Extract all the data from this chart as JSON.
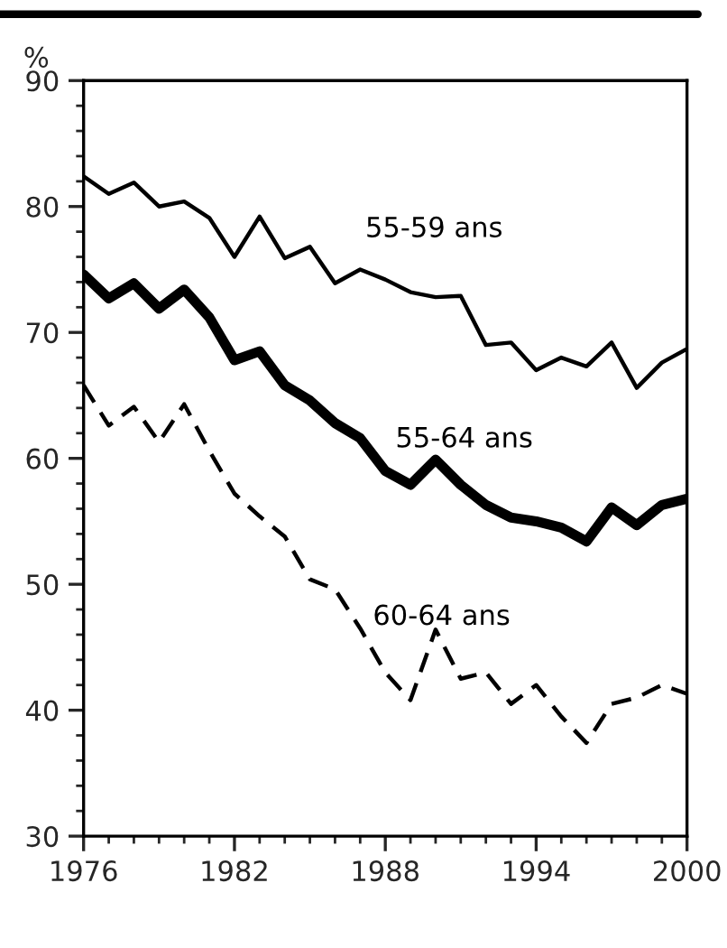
{
  "chart_data": {
    "type": "line",
    "ylabel": "%",
    "x": [
      1976,
      1977,
      1978,
      1979,
      1980,
      1981,
      1982,
      1983,
      1984,
      1985,
      1986,
      1987,
      1988,
      1989,
      1990,
      1991,
      1992,
      1993,
      1994,
      1995,
      1996,
      1997,
      1998,
      1999,
      2000
    ],
    "series": [
      {
        "name": "55-59 ans",
        "color": "#000000",
        "line_style": "solid",
        "values": [
          82.4,
          81.0,
          81.9,
          80.0,
          80.4,
          79.1,
          76.0,
          79.2,
          75.9,
          76.8,
          73.9,
          75.0,
          74.2,
          73.2,
          72.8,
          72.9,
          69.0,
          69.2,
          67.0,
          68.0,
          67.3,
          69.2,
          65.6,
          67.6,
          68.7
        ]
      },
      {
        "name": "55-64 ans",
        "color": "#000000",
        "line_style": "solid",
        "values": [
          74.6,
          72.7,
          73.9,
          71.9,
          73.4,
          71.2,
          67.8,
          68.5,
          65.8,
          64.6,
          62.8,
          61.6,
          59.0,
          57.9,
          59.9,
          57.9,
          56.3,
          55.3,
          55.0,
          54.5,
          53.4,
          56.1,
          54.7,
          56.3,
          56.8
        ]
      },
      {
        "name": "60-64 ans",
        "color": "#000000",
        "line_style": "dashed",
        "values": [
          65.8,
          62.6,
          64.1,
          61.3,
          64.3,
          60.6,
          57.2,
          55.4,
          53.8,
          50.4,
          49.6,
          46.5,
          43.0,
          40.8,
          46.4,
          42.5,
          43.0,
          40.5,
          42.0,
          39.5,
          37.4,
          40.5,
          41.0,
          42.0,
          41.3
        ]
      }
    ],
    "xlim": [
      1976,
      2000
    ],
    "xticks": [
      1976,
      1982,
      1988,
      1994,
      2000
    ],
    "ylim": [
      30,
      90
    ],
    "yticks": [
      30,
      40,
      50,
      60,
      70,
      80,
      90
    ],
    "grid": false,
    "legend": false,
    "marker": "none"
  }
}
